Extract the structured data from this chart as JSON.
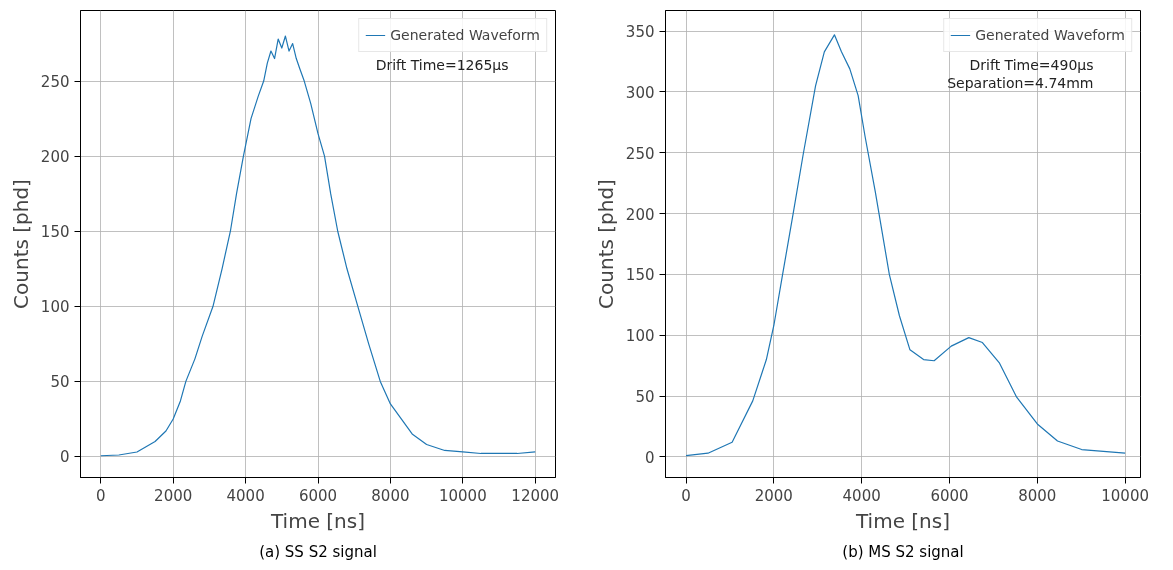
{
  "chart_data": [
    {
      "type": "line",
      "title": "(a) SS S2 signal",
      "xlabel": "Time [ns]",
      "ylabel": "Counts [phd]",
      "xlim": [
        -560,
        12560
      ],
      "ylim": [
        -14,
        297
      ],
      "xticks": [
        0,
        2000,
        4000,
        6000,
        8000,
        10000,
        12000
      ],
      "yticks": [
        0,
        50,
        100,
        150,
        200,
        250
      ],
      "grid": true,
      "legend": "top right",
      "annotations": [
        "Drift Time=1265μs"
      ],
      "x": [
        0,
        500,
        1000,
        1500,
        1800,
        2000,
        2200,
        2350,
        2600,
        2800,
        3100,
        3350,
        3580,
        3750,
        3940,
        4150,
        4350,
        4500,
        4600,
        4700,
        4800,
        4900,
        5000,
        5100,
        5200,
        5300,
        5400,
        5500,
        5620,
        5800,
        6000,
        6180,
        6350,
        6545,
        6800,
        7100,
        7400,
        7720,
        8000,
        8300,
        8600,
        9000,
        9500,
        10000,
        10500,
        11000,
        11500,
        12000
      ],
      "series": [
        {
          "name": "Generated Waveform",
          "color": "#1f77b4",
          "values": [
            0.5,
            1,
            3,
            10,
            17,
            25,
            37,
            50,
            65,
            80,
            100,
            125,
            150,
            175,
            200,
            225,
            240,
            250,
            262,
            270,
            265,
            278,
            272,
            280,
            270,
            275,
            265,
            258,
            250,
            235,
            215,
            200,
            175,
            150,
            125,
            100,
            75,
            50,
            35,
            25,
            15,
            8,
            4,
            3,
            2,
            2,
            2,
            3
          ]
        }
      ]
    },
    {
      "type": "line",
      "title": "(b) MS S2 signal",
      "xlabel": "Time [ns]",
      "ylabel": "Counts [phd]",
      "xlim": [
        -467,
        10350
      ],
      "ylim": [
        -17,
        367
      ],
      "xticks": [
        0,
        2000,
        4000,
        6000,
        8000,
        10000
      ],
      "yticks": [
        0,
        50,
        100,
        150,
        200,
        250,
        300,
        350
      ],
      "grid": true,
      "legend": "top right",
      "annotations": [
        "Drift Time=490μs",
        "Separation=4.74mm"
      ],
      "x": [
        0,
        500,
        1050,
        1520,
        1830,
        2000,
        2200,
        2440,
        2670,
        2950,
        3150,
        3380,
        3540,
        3730,
        3920,
        4080,
        4310,
        4630,
        4860,
        5100,
        5410,
        5650,
        6040,
        6440,
        6750,
        7140,
        7530,
        8000,
        8460,
        9010,
        10000
      ],
      "series": [
        {
          "name": "Generated Waveform",
          "color": "#1f77b4",
          "values": [
            1,
            3,
            12,
            46,
            80,
            108,
            150,
            200,
            249,
            305,
            333,
            347,
            333,
            319,
            297,
            263,
            218,
            150,
            116,
            88,
            80,
            79,
            91,
            98,
            94,
            77,
            49,
            27,
            13,
            6,
            3
          ]
        }
      ]
    }
  ]
}
